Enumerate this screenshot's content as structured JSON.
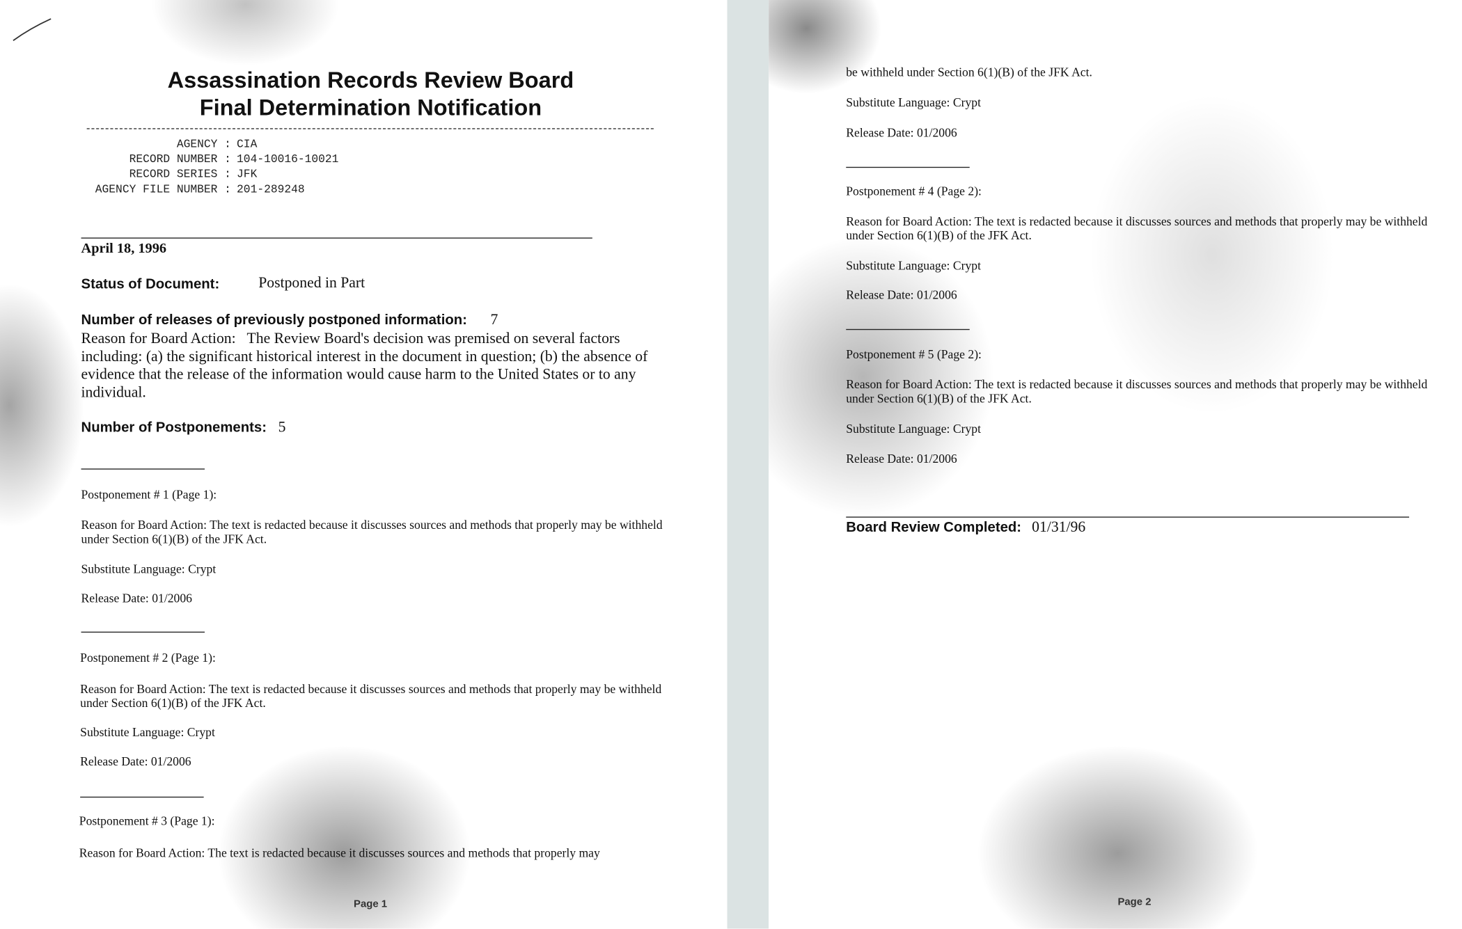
{
  "page1": {
    "title_line1": "Assassination Records Review Board",
    "title_line2": "Final Determination Notification",
    "fields": [
      {
        "label": "AGENCY :",
        "value": "CIA"
      },
      {
        "label": "RECORD NUMBER :",
        "value": "104-10016-10021"
      },
      {
        "label": "RECORD SERIES :",
        "value": "JFK"
      },
      {
        "label": "AGENCY FILE NUMBER :",
        "value": "201-289248"
      }
    ],
    "date": "April 18, 1996",
    "status_label": "Status of Document:",
    "status_value": "Postponed in Part",
    "releases_label": "Number of releases of previously postponed information:",
    "releases_value": "7",
    "reason_label": "Reason for Board Action:",
    "reason_text": "The Review Board's decision was premised on several factors including: (a) the significant historical interest in the document in question; (b) the absence of evidence that the release of the information would cause harm to the United States or to any individual.",
    "postponements_label": "Number of Postponements:",
    "postponements_value": "5",
    "postponements": [
      {
        "heading": "Postponement # 1 (Page 1):",
        "reason": "Reason for Board Action: The text is redacted because it discusses sources and methods that properly may be withheld under Section 6(1)(B) of the JFK Act.",
        "substitute": "Substitute Language: Crypt",
        "release": "Release Date: 01/2006"
      },
      {
        "heading": "Postponement # 2 (Page 1):",
        "reason": "Reason for Board Action: The text is redacted because it discusses sources and methods that properly may be withheld under Section 6(1)(B) of the JFK Act.",
        "substitute": "Substitute Language: Crypt",
        "release": "Release Date: 01/2006"
      },
      {
        "heading": "Postponement # 3 (Page 1):",
        "reason": "Reason for Board Action: The text is redacted because it discusses sources and methods that properly may"
      }
    ],
    "footer": "Page 1"
  },
  "page2": {
    "continued": "be withheld under Section 6(1)(B) of the JFK Act.",
    "p3_substitute": "Substitute Language: Crypt",
    "p3_release": "Release Date: 01/2006",
    "postponements": [
      {
        "heading": "Postponement # 4 (Page 2):",
        "reason": "Reason for Board Action: The text is redacted because it discusses sources and methods that properly may be withheld under Section 6(1)(B) of the JFK Act.",
        "substitute": "Substitute Language: Crypt",
        "release": "Release Date: 01/2006"
      },
      {
        "heading": "Postponement # 5 (Page 2):",
        "reason": "Reason for Board Action: The text is redacted because it discusses sources and methods that properly may be withheld under Section 6(1)(B) of the JFK Act.",
        "substitute": "Substitute Language: Crypt",
        "release": "Release Date: 01/2006"
      }
    ],
    "completed_label": "Board Review Completed:",
    "completed_value": "01/31/96",
    "footer": "Page 2"
  }
}
